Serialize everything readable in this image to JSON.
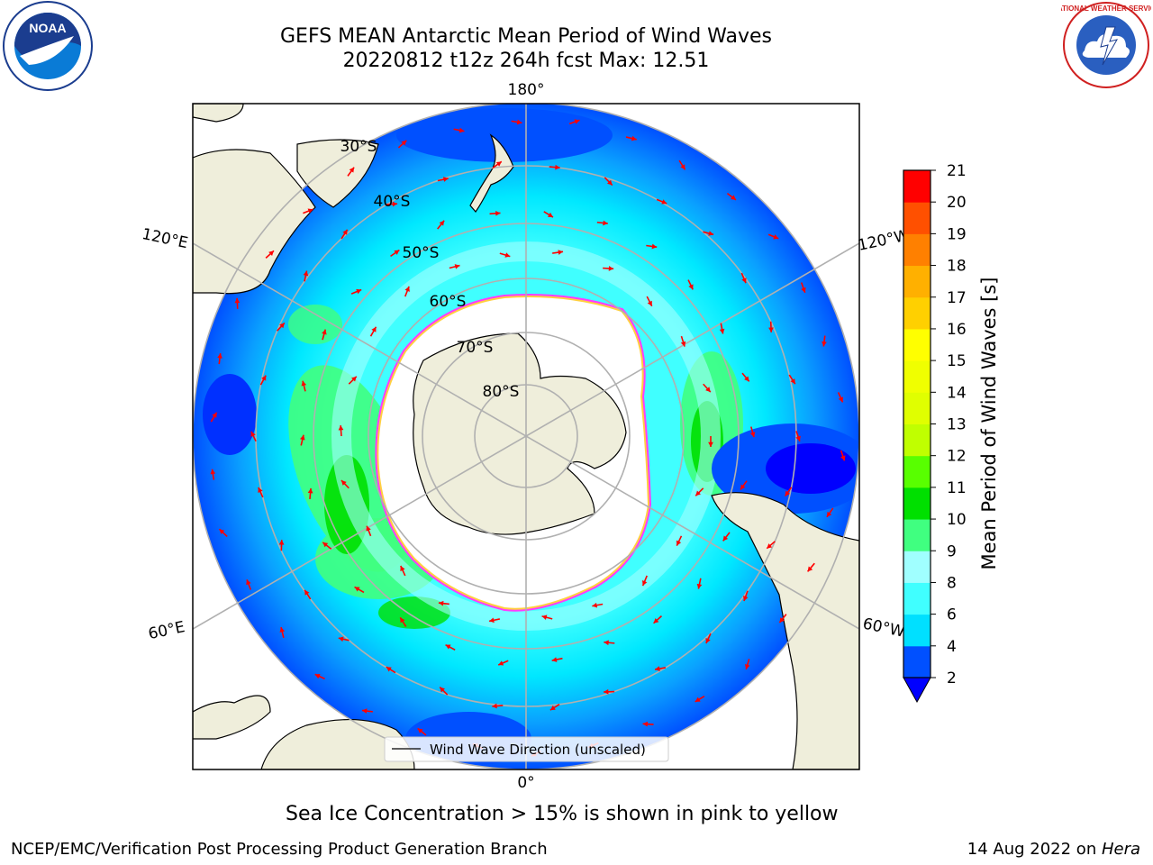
{
  "header": {
    "title_line1": "GEFS MEAN Antarctic Mean Period of Wind Waves",
    "title_line2": "20220812 t12z 264h fcst   Max: 12.51"
  },
  "map": {
    "projection": "south-polar-stereographic",
    "longitude_labels": {
      "top": "180°",
      "bottom": "0°",
      "upper_left": "120°E",
      "upper_right": "120°W",
      "lower_left": "60°E",
      "lower_right": "60°W"
    },
    "latitude_labels": [
      "30°S",
      "40°S",
      "50°S",
      "60°S",
      "70°S",
      "80°S"
    ],
    "legend_label": "Wind Wave Direction (unscaled)",
    "arrow_color": "#ff0000",
    "land_color": "#efeedb",
    "ice_edge_colors": [
      "#ff3cff",
      "#ffd040"
    ]
  },
  "colorbar": {
    "label": "Mean Period of Wind Waves [s]",
    "ticks": [
      "2",
      "4",
      "6",
      "8",
      "9",
      "10",
      "11",
      "12",
      "13",
      "14",
      "15",
      "16",
      "17",
      "18",
      "19",
      "20",
      "21"
    ],
    "colors": [
      "#0050ff",
      "#00e0ff",
      "#40ffff",
      "#a0ffff",
      "#40ff80",
      "#00e000",
      "#58ff00",
      "#c0ff00",
      "#e0ff00",
      "#f0ff00",
      "#ffff00",
      "#ffd000",
      "#ffb000",
      "#ff8000",
      "#ff5000",
      "#ff0000"
    ],
    "under_color": "#0000ff"
  },
  "caption": "Sea Ice Concentration > 15% is shown in pink to yellow",
  "footer": {
    "left": "NCEP/EMC/Verification Post Processing Product Generation Branch",
    "right_date": "14 Aug 2022 on ",
    "right_machine": "Hera"
  },
  "logos": {
    "left_text": "NOAA",
    "right_text": "NATIONAL WEATHER SERVICE"
  }
}
